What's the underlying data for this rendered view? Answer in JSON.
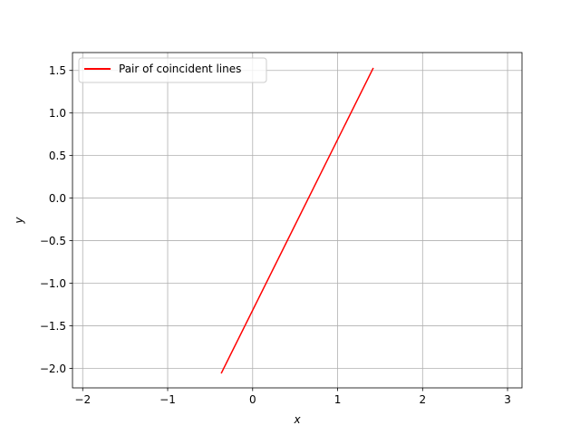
{
  "chart_data": {
    "type": "line",
    "title": "",
    "xlabel": "x",
    "ylabel": "y",
    "xlim": [
      -2.12,
      3.17
    ],
    "ylim": [
      -2.23,
      1.71
    ],
    "x_ticks": [
      -2,
      -1,
      0,
      1,
      2,
      3
    ],
    "x_tick_labels": [
      "−2",
      "−1",
      "0",
      "1",
      "2",
      "3"
    ],
    "y_ticks": [
      -2.0,
      -1.5,
      -1.0,
      -0.5,
      0.0,
      0.5,
      1.0,
      1.5
    ],
    "y_tick_labels": [
      "−2.0",
      "−1.5",
      "−1.0",
      "−0.5",
      "0.0",
      "0.5",
      "1.0",
      "1.5"
    ],
    "grid": true,
    "legend_position": "top-left",
    "series": [
      {
        "name": "Pair of coincident lines",
        "color": "#ff0000",
        "x": [
          -0.37,
          1.42
        ],
        "y": [
          -2.06,
          1.53
        ]
      }
    ]
  }
}
